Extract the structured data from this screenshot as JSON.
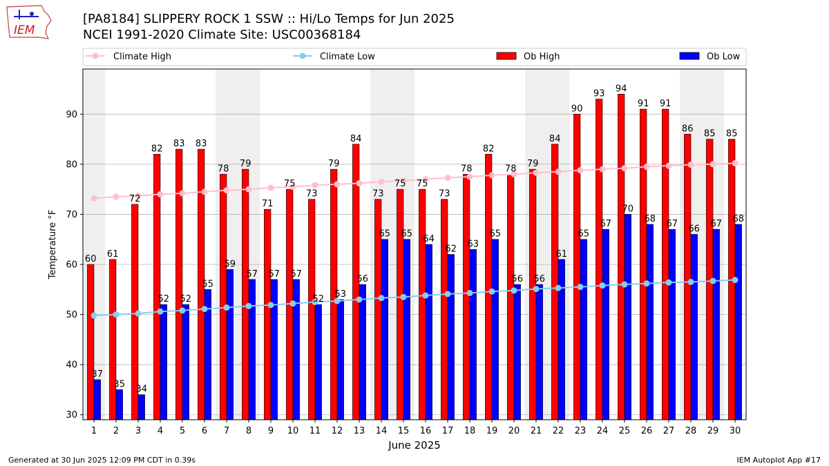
{
  "header": {
    "title_line1": "[PA8184] SLIPPERY ROCK 1 SSW :: Hi/Lo Temps for Jun 2025",
    "title_line2": "NCEI 1991-2020 Climate Site: USC00368184",
    "logo_text": "IEM"
  },
  "footer": {
    "generated": "Generated at 30 Jun 2025 12:09 PM CDT in 0.39s",
    "app": "IEM Autoplot App #17"
  },
  "colors": {
    "ob_high": "#ff0000",
    "ob_low": "#0000ff",
    "climate_high": "#ffc0cb",
    "climate_low": "#87ceeb",
    "weekend_shade": "#efefef",
    "grid": "#b0b0b0"
  },
  "chart_data": {
    "type": "bar",
    "xlabel": "June 2025",
    "ylabel": "Temperature °F",
    "ylim": [
      29,
      99
    ],
    "yticks": [
      30,
      40,
      50,
      60,
      70,
      80,
      90
    ],
    "grid": "horizontal",
    "legend_position": "top",
    "categories": [
      "1",
      "2",
      "3",
      "4",
      "5",
      "6",
      "7",
      "8",
      "9",
      "10",
      "11",
      "12",
      "13",
      "14",
      "15",
      "16",
      "17",
      "18",
      "19",
      "20",
      "21",
      "22",
      "23",
      "24",
      "25",
      "26",
      "27",
      "28",
      "29",
      "30"
    ],
    "weekend_days": [
      [
        1,
        1
      ],
      [
        7,
        8
      ],
      [
        14,
        15
      ],
      [
        21,
        22
      ],
      [
        28,
        29
      ]
    ],
    "series": [
      {
        "name": "Ob High",
        "kind": "bar",
        "values": [
          60,
          61,
          72,
          82,
          83,
          83,
          78,
          79,
          71,
          75,
          73,
          79,
          84,
          73,
          75,
          75,
          73,
          78,
          82,
          78,
          79,
          84,
          90,
          93,
          94,
          91,
          91,
          86,
          85,
          85
        ]
      },
      {
        "name": "Ob Low",
        "kind": "bar",
        "values": [
          37,
          35,
          34,
          52,
          52,
          55,
          59,
          57,
          57,
          57,
          52,
          53,
          56,
          65,
          65,
          64,
          62,
          63,
          65,
          56,
          56,
          61,
          65,
          67,
          70,
          68,
          67,
          66,
          67,
          68
        ]
      },
      {
        "name": "Climate High",
        "kind": "line",
        "values": [
          73.2,
          73.5,
          73.7,
          74.0,
          74.2,
          74.5,
          74.8,
          75.0,
          75.3,
          75.5,
          75.8,
          76.0,
          76.2,
          76.5,
          76.7,
          77.0,
          77.3,
          77.5,
          77.8,
          78.0,
          78.3,
          78.5,
          78.8,
          79.0,
          79.2,
          79.5,
          79.7,
          79.9,
          80.0,
          80.2
        ]
      },
      {
        "name": "Climate Low",
        "kind": "line",
        "values": [
          49.8,
          50.0,
          50.2,
          50.6,
          50.8,
          51.1,
          51.4,
          51.7,
          51.9,
          52.2,
          52.5,
          52.7,
          53.0,
          53.3,
          53.5,
          53.8,
          54.1,
          54.3,
          54.6,
          54.8,
          55.1,
          55.3,
          55.5,
          55.8,
          56.0,
          56.2,
          56.4,
          56.5,
          56.7,
          56.9
        ]
      }
    ]
  }
}
